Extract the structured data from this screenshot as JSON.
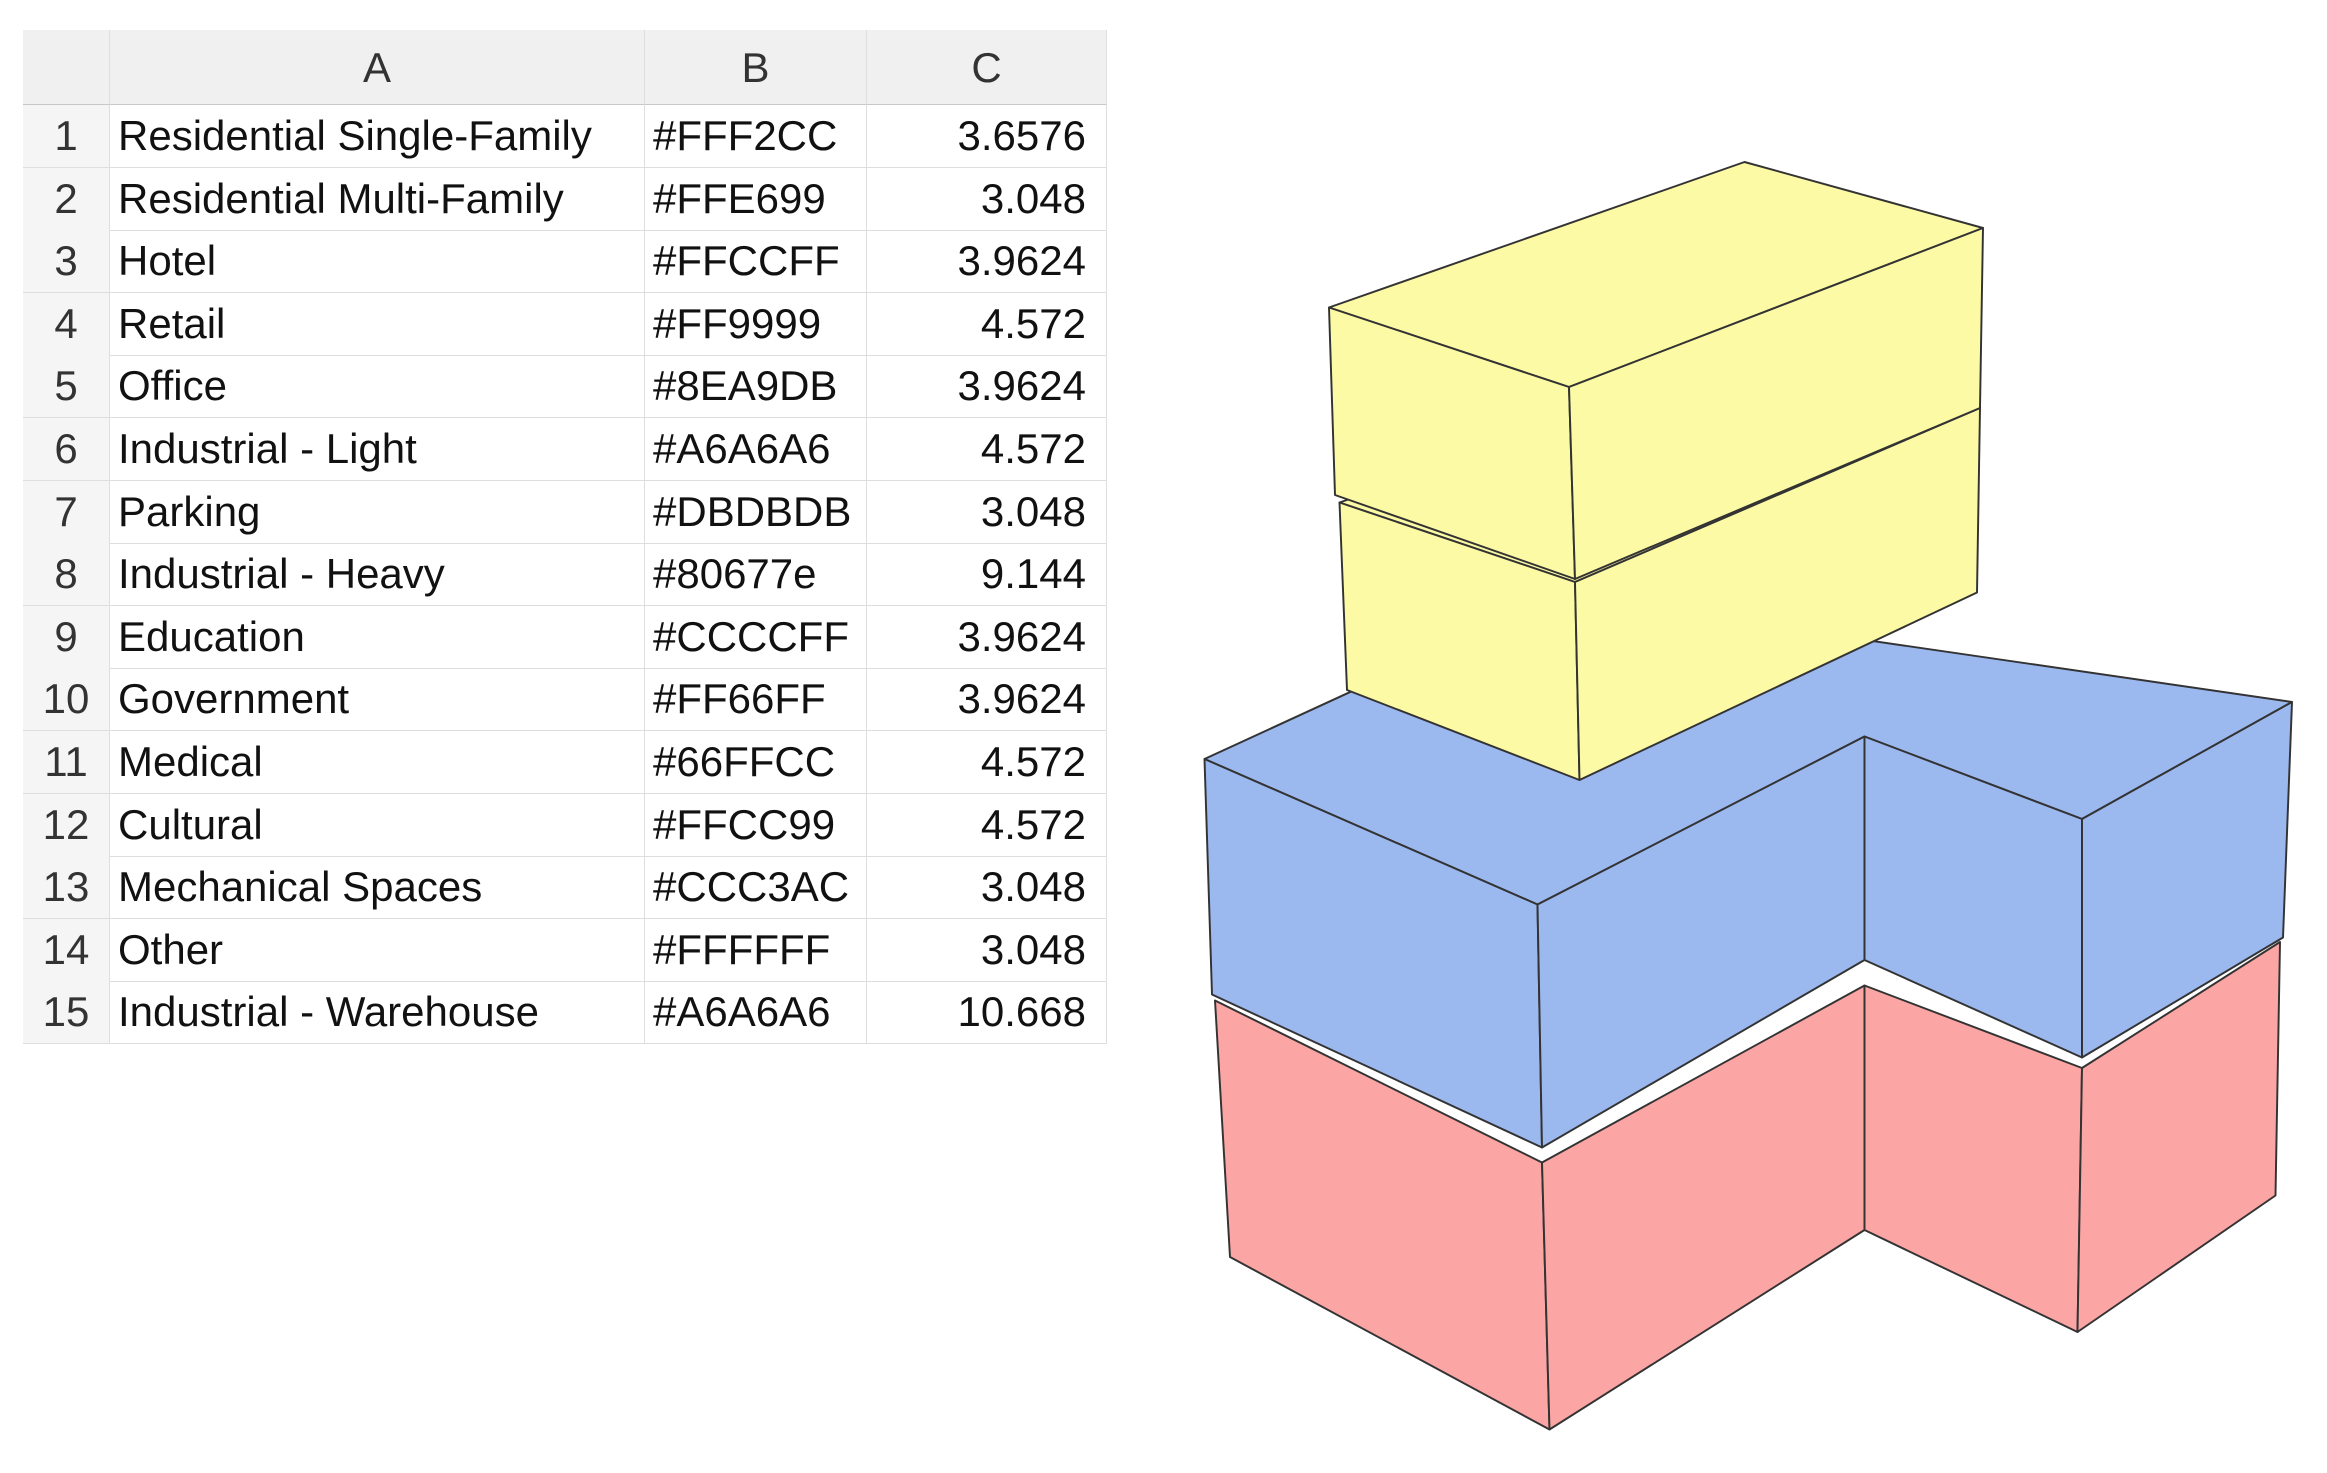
{
  "spreadsheet": {
    "columns": [
      "A",
      "B",
      "C"
    ],
    "rows": [
      {
        "number": "1",
        "cells": [
          "Residential Single-Family",
          "#FFF2CC",
          "3.6576"
        ]
      },
      {
        "number": "2",
        "cells": [
          "Residential Multi-Family",
          "#FFE699",
          "3.048"
        ]
      },
      {
        "number": "3",
        "cells": [
          "Hotel",
          "#FFCCFF",
          "3.9624"
        ]
      },
      {
        "number": "4",
        "cells": [
          "Retail",
          "#FF9999",
          "4.572"
        ]
      },
      {
        "number": "5",
        "cells": [
          "Office",
          "#8EA9DB",
          "3.9624"
        ]
      },
      {
        "number": "6",
        "cells": [
          "Industrial - Light",
          "#A6A6A6",
          "4.572"
        ]
      },
      {
        "number": "7",
        "cells": [
          "Parking",
          "#DBDBDB",
          "3.048"
        ]
      },
      {
        "number": "8",
        "cells": [
          "Industrial - Heavy",
          "#80677e",
          "9.144"
        ]
      },
      {
        "number": "9",
        "cells": [
          "Education",
          "#CCCCFF",
          "3.9624"
        ]
      },
      {
        "number": "10",
        "cells": [
          "Government",
          "#FF66FF",
          "3.9624"
        ]
      },
      {
        "number": "11",
        "cells": [
          "Medical",
          "#66FFCC",
          "4.572"
        ]
      },
      {
        "number": "12",
        "cells": [
          "Cultural",
          "#FFCC99",
          "4.572"
        ]
      },
      {
        "number": "13",
        "cells": [
          "Mechanical Spaces",
          "#CCC3AC",
          "3.048"
        ]
      },
      {
        "number": "14",
        "cells": [
          "Other",
          "#FFFFFF",
          "3.048"
        ]
      },
      {
        "number": "15",
        "cells": [
          "Industrial - Warehouse",
          "#A6A6A6",
          "10.668"
        ]
      }
    ]
  }
}
